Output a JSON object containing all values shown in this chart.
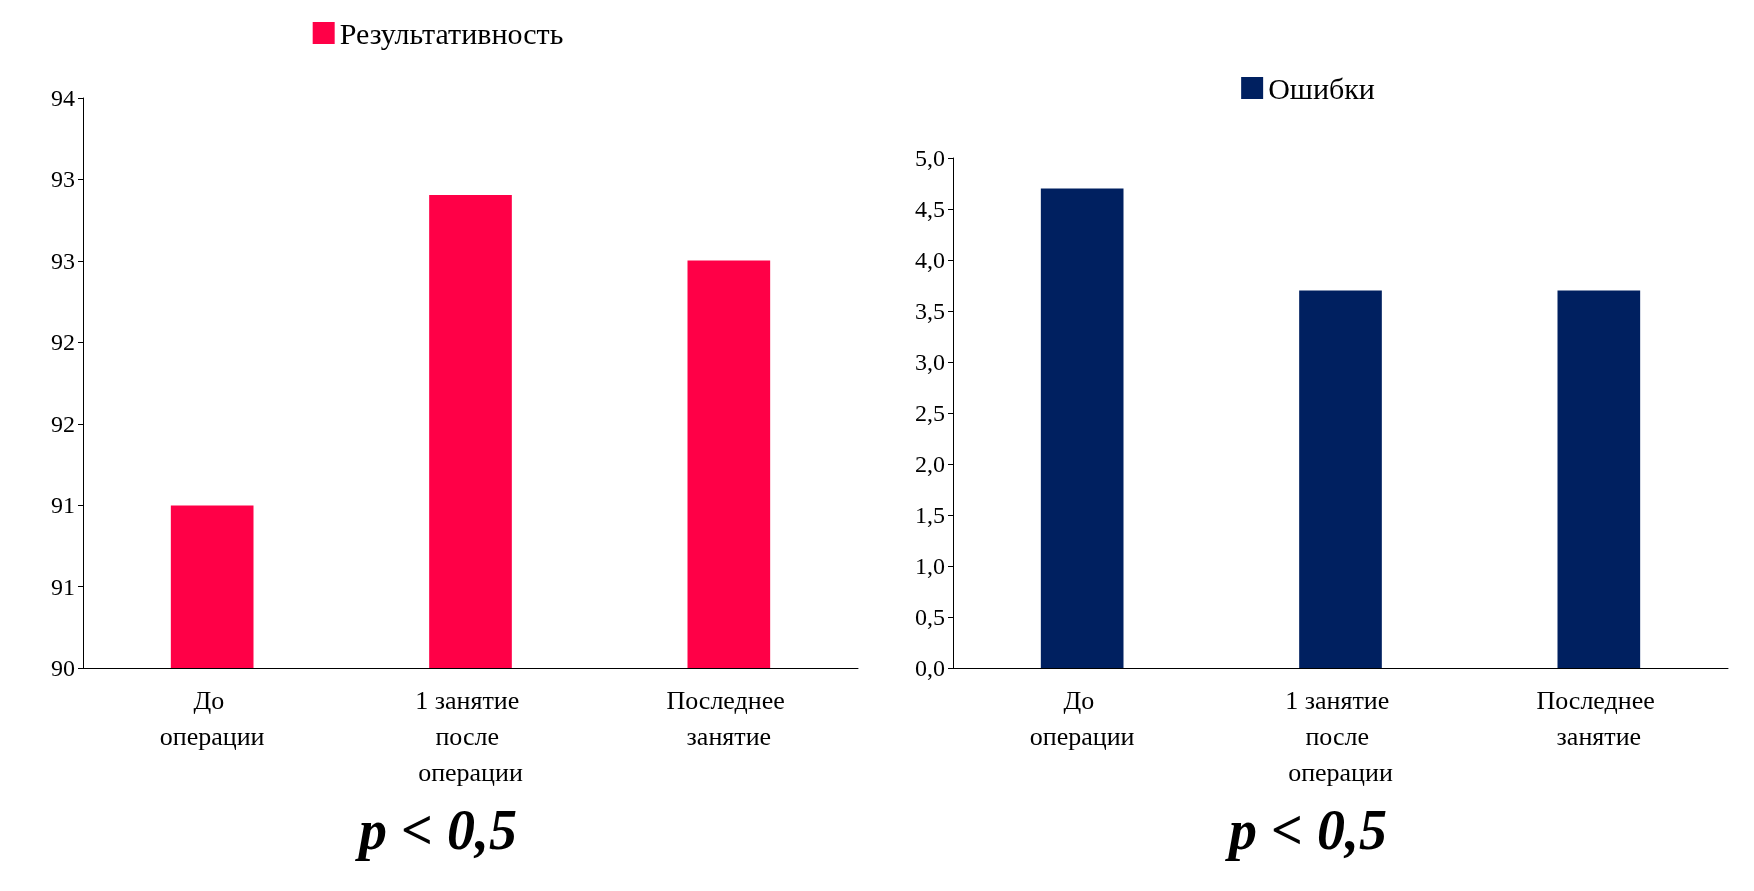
{
  "chart_data": [
    {
      "type": "bar",
      "categories": [
        "До операции",
        "1 занятие после операции",
        "Последнее занятие"
      ],
      "series": [
        {
          "name": "Результативность",
          "color": "#ff0047",
          "values": [
            91.14,
            93.32,
            92.86
          ]
        }
      ],
      "ylim": [
        90,
        94
      ],
      "yticks": [
        90,
        {
          "value": 90.571,
          "label": "91"
        },
        {
          "value": 91.143,
          "label": "91"
        },
        {
          "value": 91.714,
          "label": "92"
        },
        {
          "value": 92.286,
          "label": "92"
        },
        {
          "value": 92.857,
          "label": "93"
        },
        {
          "value": 93.429,
          "label": "93"
        },
        94
      ],
      "grid": false,
      "legend": "top",
      "annotations": [
        "p < 0,5"
      ]
    },
    {
      "type": "bar",
      "categories": [
        "До операции",
        "1 занятие после операции",
        "Последнее занятие"
      ],
      "series": [
        {
          "name": "Ошибки",
          "color": "#002060",
          "values": [
            4.7,
            3.7,
            3.7
          ]
        }
      ],
      "ylim": [
        0,
        5
      ],
      "yticks": [
        {
          "value": 0,
          "label": "0,0"
        },
        {
          "value": 0.5,
          "label": "0,5"
        },
        {
          "value": 1,
          "label": "1,0"
        },
        {
          "value": 1.5,
          "label": "1,5"
        },
        {
          "value": 2,
          "label": "2,0"
        },
        {
          "value": 2.5,
          "label": "2,5"
        },
        {
          "value": 3,
          "label": "3,0"
        },
        {
          "value": 3.5,
          "label": "3,5"
        },
        {
          "value": 4,
          "label": "4,0"
        },
        {
          "value": 4.5,
          "label": "4,5"
        },
        {
          "value": 5,
          "label": "5,0"
        }
      ],
      "grid": false,
      "legend": "top",
      "annotations": [
        "p < 0,5"
      ]
    }
  ]
}
